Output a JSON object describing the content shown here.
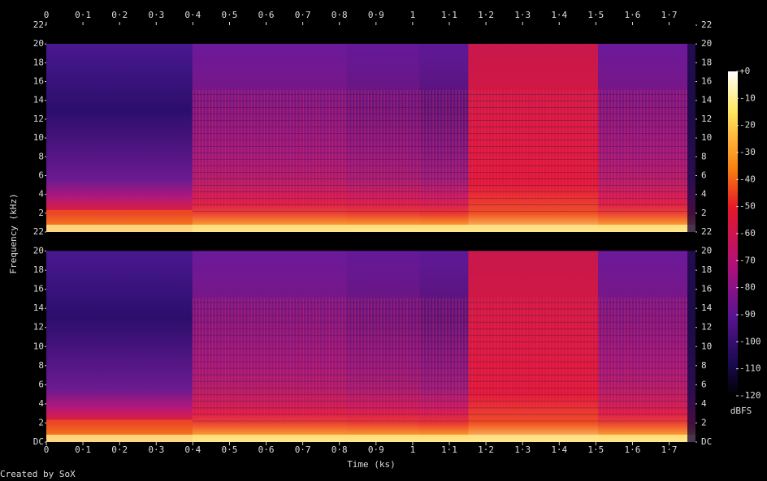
{
  "chart_data": {
    "type": "spectrogram",
    "xlabel": "Time (ks)",
    "ylabel": "Frequency (kHz)",
    "colorbar_label": "dBFS",
    "credit": "Created by SoX",
    "xlim": [
      0,
      1.772
    ],
    "xticks": [
      0,
      {
        "value": 0.1,
        "label": "0·1"
      },
      {
        "value": 0.2,
        "label": "0·2"
      },
      {
        "value": 0.3,
        "label": "0·3"
      },
      {
        "value": 0.4,
        "label": "0·4"
      },
      {
        "value": 0.5,
        "label": "0·5"
      },
      {
        "value": 0.6,
        "label": "0·6"
      },
      {
        "value": 0.7,
        "label": "0·7"
      },
      {
        "value": 0.8,
        "label": "0·8"
      },
      {
        "value": 0.9,
        "label": "0·9"
      },
      1,
      {
        "value": 1.1,
        "label": "1·1"
      },
      {
        "value": 1.2,
        "label": "1·2"
      },
      {
        "value": 1.3,
        "label": "1·3"
      },
      {
        "value": 1.4,
        "label": "1·4"
      },
      {
        "value": 1.5,
        "label": "1·5"
      },
      {
        "value": 1.6,
        "label": "1·6"
      },
      {
        "value": 1.7,
        "label": "1·7"
      }
    ],
    "ylim": [
      0,
      22
    ],
    "yticks": [
      {
        "value": 0,
        "label": "DC"
      },
      2,
      4,
      6,
      8,
      10,
      12,
      14,
      16,
      18,
      20,
      22
    ],
    "zlim": [
      -120,
      0
    ],
    "zticks": [
      {
        "value": 0,
        "label": "+0"
      },
      -10,
      -20,
      -30,
      -40,
      -50,
      -60,
      -70,
      -80,
      -90,
      -100,
      -110,
      -120
    ]
  }
}
